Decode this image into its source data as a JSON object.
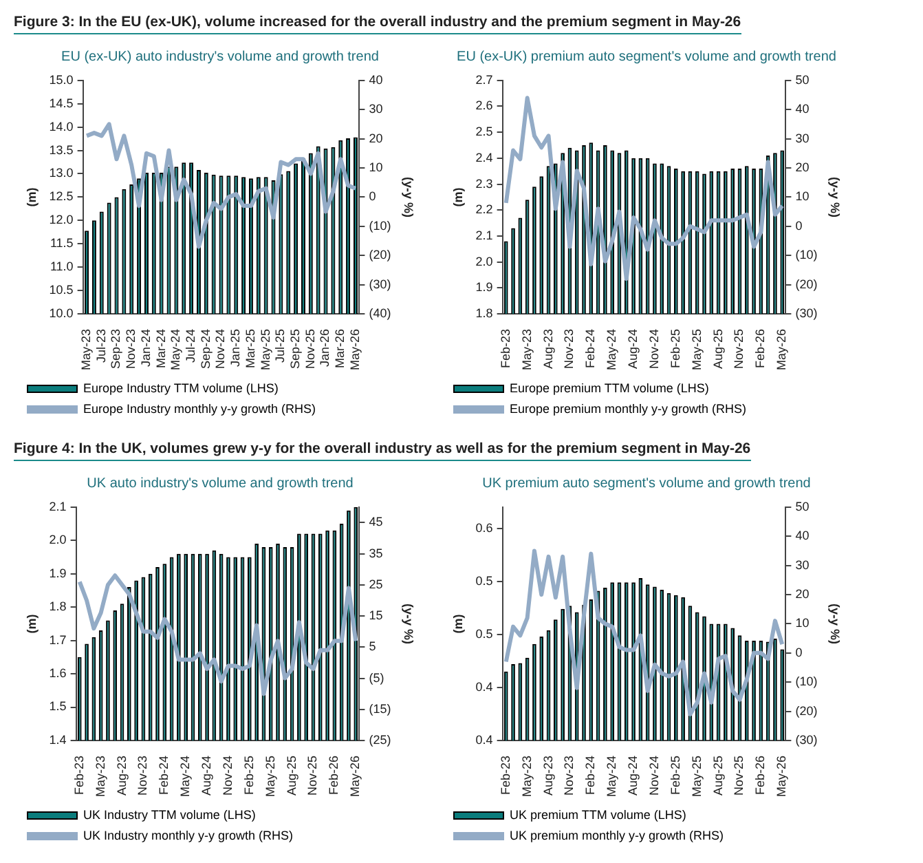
{
  "chart_data": [
    {
      "type": "bar",
      "title": "Figure 3: In the EU (ex-UK), volume increased for the overall industry and the premium segment in May-26",
      "subtitle": "EU (ex-UK) auto industry's volume and growth trend",
      "ylabel": "(m)",
      "y2label": "(y-y %)",
      "legend": "bottom",
      "marker": "none",
      "categories": [
        "May-23",
        null,
        "Jul-23",
        null,
        "Sep-23",
        null,
        "Nov-23",
        null,
        "Jan-24",
        null,
        "Mar-24",
        null,
        "May-24",
        null,
        "Jul-24",
        null,
        "Sep-24",
        null,
        "Nov-24",
        null,
        "Jan-25",
        null,
        "Mar-25",
        null,
        "May-25",
        null,
        "Jul-25",
        null,
        "Sep-25",
        null,
        "Nov-25",
        null,
        "Jan-26",
        null,
        "Mar-26",
        null,
        "May-26"
      ],
      "ylim": [
        10,
        15
      ],
      "yticks": [
        {
          "value": 10,
          "label": "10.0"
        },
        {
          "value": 10.5,
          "label": "10.5"
        },
        {
          "value": 11,
          "label": "11.0"
        },
        {
          "value": 11.5,
          "label": "11.5"
        },
        {
          "value": 12,
          "label": "12.0"
        },
        {
          "value": 12.5,
          "label": "12.5"
        },
        {
          "value": 13,
          "label": "13.0"
        },
        {
          "value": 13.5,
          "label": "13.5"
        },
        {
          "value": 14,
          "label": "14.0"
        },
        {
          "value": 14.5,
          "label": "14.5"
        },
        {
          "value": 15,
          "label": "15.0"
        }
      ],
      "y2lim": [
        -40,
        40
      ],
      "y2ticks": [
        {
          "value": -40,
          "label": "(40)"
        },
        {
          "value": -30,
          "label": "(30)"
        },
        {
          "value": -20,
          "label": "(20)"
        },
        {
          "value": -10,
          "label": "(10)"
        },
        0,
        10,
        20,
        30,
        40
      ],
      "series": [
        {
          "name": "Europe Industry TTM volume (LHS)",
          "color": "#0b7d7d",
          "values": [
            11.78,
            12.0,
            12.19,
            12.38,
            12.5,
            12.67,
            12.77,
            12.9,
            13.02,
            13.02,
            13.02,
            13.15,
            13.15,
            13.24,
            13.24,
            13.08,
            13.02,
            12.98,
            12.96,
            12.96,
            12.96,
            12.93,
            12.9,
            12.93,
            12.93,
            12.86,
            12.99,
            13.06,
            13.22,
            13.33,
            13.44,
            13.59,
            13.54,
            13.57,
            13.72,
            13.76,
            13.78
          ]
        },
        {
          "name": "Europe Industry monthly y-y growth (RHS)",
          "type": "line",
          "axis": "y2",
          "color": "#93abc6",
          "values": [
            21,
            22,
            21,
            25,
            13,
            21,
            11,
            -3,
            15,
            14,
            -1,
            16,
            -1,
            6,
            1,
            -17,
            -8,
            -2,
            -4,
            0,
            1,
            -3,
            -3,
            2,
            3,
            -7,
            12,
            11,
            13,
            13,
            8,
            15,
            -5,
            2,
            13,
            4,
            3
          ]
        }
      ]
    },
    {
      "type": "bar",
      "subtitle": "EU (ex-UK) premium auto segment's volume and growth trend",
      "ylabel": "(m)",
      "y2label": "(y-y %)",
      "legend": "bottom",
      "marker": "none",
      "categories": [
        "Feb-23",
        null,
        null,
        "May-23",
        null,
        null,
        "Aug-23",
        null,
        null,
        "Nov-23",
        null,
        null,
        "Feb-24",
        null,
        null,
        "May-24",
        null,
        null,
        "Aug-24",
        null,
        null,
        "Nov-24",
        null,
        null,
        "Feb-25",
        null,
        null,
        "May-25",
        null,
        null,
        "Aug-25",
        null,
        null,
        "Nov-25",
        null,
        null,
        "Feb-26",
        null,
        null,
        "May-26"
      ],
      "ylim": [
        1.8,
        2.7
      ],
      "yticks": [
        1.8,
        1.9,
        {
          "value": 2,
          "label": "2.0"
        },
        2.1,
        2.2,
        2.3,
        2.4,
        2.5,
        2.6,
        2.7
      ],
      "y2lim": [
        -30,
        50
      ],
      "y2ticks": [
        {
          "value": -30,
          "label": "(30)"
        },
        {
          "value": -20,
          "label": "(20)"
        },
        {
          "value": -10,
          "label": "(10)"
        },
        0,
        10,
        20,
        30,
        40,
        50
      ],
      "series": [
        {
          "name": "Europe premium TTM volume (LHS)",
          "color": "#0b7d7d",
          "values": [
            2.08,
            2.13,
            2.17,
            2.24,
            2.29,
            2.33,
            2.37,
            2.38,
            2.42,
            2.44,
            2.43,
            2.45,
            2.46,
            2.43,
            2.45,
            2.43,
            2.42,
            2.43,
            2.4,
            2.4,
            2.4,
            2.38,
            2.38,
            2.37,
            2.36,
            2.35,
            2.35,
            2.35,
            2.34,
            2.35,
            2.35,
            2.35,
            2.36,
            2.36,
            2.37,
            2.36,
            2.36,
            2.41,
            2.42,
            2.43
          ]
        },
        {
          "name": "Europe premium monthly y-y growth (RHS)",
          "type": "line",
          "axis": "y2",
          "color": "#93abc6",
          "values": [
            8,
            26,
            23,
            44,
            31,
            27,
            31,
            6,
            22,
            -7,
            19,
            13,
            -13,
            6,
            -12,
            -5,
            5,
            -18,
            3,
            -1,
            -8,
            2,
            -4,
            -6,
            -6,
            -4,
            0,
            -1,
            -2,
            2,
            2,
            2,
            2,
            3,
            4,
            -7,
            -2,
            22,
            4,
            7
          ]
        }
      ]
    },
    {
      "type": "bar",
      "title": "Figure 4: In the UK, volumes grew y-y for the overall industry as well as for the premium segment in May-26",
      "subtitle": "UK auto industry's volume and growth trend",
      "ylabel": "(m)",
      "y2label": "(y-y %)",
      "legend": "bottom",
      "marker": "none",
      "categories": [
        "Feb-23",
        null,
        null,
        "May-23",
        null,
        null,
        "Aug-23",
        null,
        null,
        "Nov-23",
        null,
        null,
        "Feb-24",
        null,
        null,
        "May-24",
        null,
        null,
        "Aug-24",
        null,
        null,
        "Nov-24",
        null,
        null,
        "Feb-25",
        null,
        null,
        "May-25",
        null,
        null,
        "Aug-25",
        null,
        null,
        "Nov-25",
        null,
        null,
        "Feb-26",
        null,
        null,
        "May-26"
      ],
      "ylim": [
        1.4,
        2.1
      ],
      "yticks": [
        1.4,
        1.5,
        1.6,
        1.7,
        1.8,
        1.9,
        {
          "value": 2,
          "label": "2.0"
        },
        2.1
      ],
      "y2lim": [
        -25,
        50
      ],
      "y2ticks": [
        {
          "value": -25,
          "label": "(25)"
        },
        {
          "value": -15,
          "label": "(15)"
        },
        {
          "value": -5,
          "label": "(5)"
        },
        5,
        15,
        25,
        35,
        45
      ],
      "series": [
        {
          "name": "UK Industry TTM volume (LHS)",
          "color": "#0b7d7d",
          "values": [
            1.65,
            1.69,
            1.71,
            1.73,
            1.76,
            1.79,
            1.81,
            1.86,
            1.88,
            1.89,
            1.9,
            1.92,
            1.93,
            1.95,
            1.96,
            1.96,
            1.96,
            1.96,
            1.96,
            1.97,
            1.96,
            1.95,
            1.95,
            1.95,
            1.95,
            1.99,
            1.98,
            1.98,
            1.99,
            1.98,
            1.98,
            2.02,
            2.02,
            2.02,
            2.02,
            2.03,
            2.03,
            2.05,
            2.09,
            2.1
          ]
        },
        {
          "name": "UK Industry monthly y-y growth (RHS)",
          "type": "line",
          "axis": "y2",
          "color": "#93abc6",
          "values": [
            26,
            20,
            11,
            16,
            25,
            28,
            25,
            22,
            16,
            10,
            10,
            8,
            14,
            10,
            1,
            1,
            1,
            3,
            -2,
            1,
            -6,
            -1,
            -1,
            -2,
            -1,
            12,
            -10,
            1,
            7,
            -5,
            -2,
            13,
            0,
            -2,
            4,
            4,
            7,
            7,
            24,
            7
          ]
        }
      ]
    },
    {
      "type": "bar",
      "subtitle": "UK premium auto segment's volume and growth trend",
      "ylabel": "(m)",
      "y2label": "(y-y %)",
      "legend": "bottom",
      "marker": "none",
      "categories": [
        "Feb-23",
        null,
        null,
        "May-23",
        null,
        null,
        "Aug-23",
        null,
        null,
        "Nov-23",
        null,
        null,
        "Feb-24",
        null,
        null,
        "May-24",
        null,
        null,
        "Aug-24",
        null,
        null,
        "Nov-24",
        null,
        null,
        "Feb-25",
        null,
        null,
        "May-25",
        null,
        null,
        "Aug-25",
        null,
        null,
        "Nov-25",
        null,
        null,
        "Feb-26",
        null,
        null,
        "May-26"
      ],
      "ylim": [
        0.4,
        0.62
      ],
      "yticks": [
        {
          "value": 0.4,
          "label": "0.4"
        },
        {
          "value": 0.45,
          "label": "0.4"
        },
        {
          "value": 0.5,
          "label": "0.5"
        },
        {
          "value": 0.55,
          "label": "0.5"
        },
        {
          "value": 0.6,
          "label": "0.6"
        }
      ],
      "y2lim": [
        -30,
        50
      ],
      "y2ticks": [
        {
          "value": -30,
          "label": "(30)"
        },
        {
          "value": -20,
          "label": "(20)"
        },
        {
          "value": -10,
          "label": "(10)"
        },
        0,
        10,
        20,
        30,
        40,
        50
      ],
      "series": [
        {
          "name": "UK premium TTM volume (LHS)",
          "color": "#0b7d7d",
          "values": [
            0.465,
            0.472,
            0.473,
            0.478,
            0.491,
            0.498,
            0.504,
            0.514,
            0.524,
            0.527,
            0.521,
            0.528,
            0.533,
            0.541,
            0.544,
            0.549,
            0.549,
            0.549,
            0.549,
            0.553,
            0.547,
            0.545,
            0.542,
            0.539,
            0.537,
            0.535,
            0.527,
            0.521,
            0.517,
            0.51,
            0.51,
            0.51,
            0.506,
            0.499,
            0.494,
            0.494,
            0.494,
            0.493,
            0.496,
            0.486
          ]
        },
        {
          "name": "UK premium monthly y-y growth (RHS)",
          "type": "line",
          "axis": "y2",
          "color": "#93abc6",
          "values": [
            -3,
            9,
            6,
            12,
            35,
            20,
            33,
            19,
            33,
            8,
            -12,
            13,
            34,
            12,
            10,
            9,
            2,
            1,
            1,
            6,
            -13,
            -4,
            -7,
            -8,
            -7,
            -3,
            -21,
            -17,
            -7,
            -17,
            -2,
            -1,
            -13,
            -16,
            -9,
            0,
            0,
            -2,
            11,
            3
          ]
        }
      ]
    }
  ]
}
